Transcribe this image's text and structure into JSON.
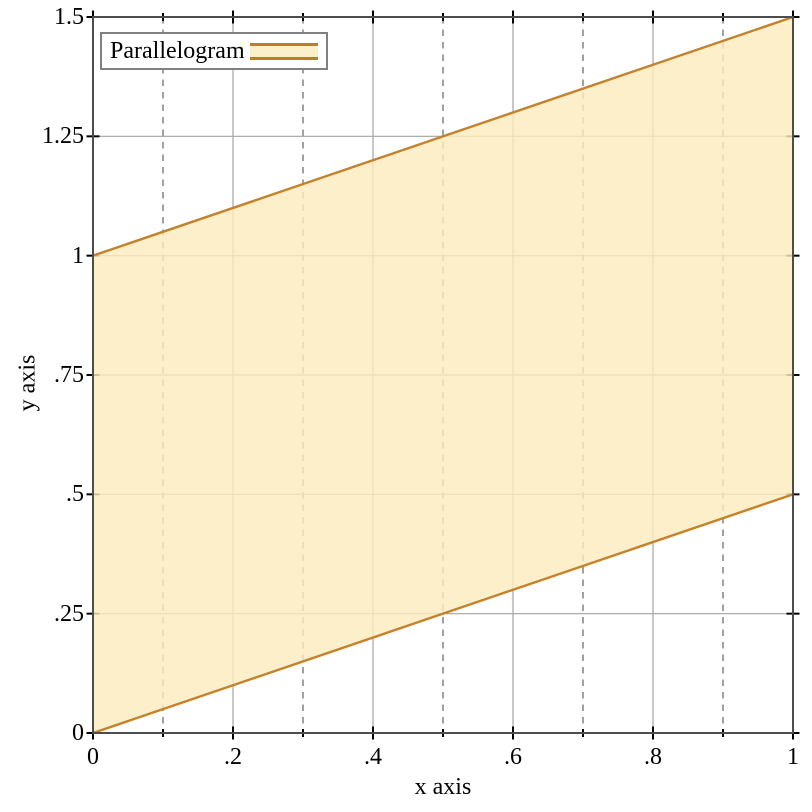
{
  "chart_data": {
    "type": "area",
    "xlabel": "x axis",
    "ylabel": "y axis",
    "xlim": [
      0,
      1
    ],
    "ylim": [
      0,
      1.5
    ],
    "x_ticks": {
      "major_values": [
        0,
        0.2,
        0.4,
        0.6,
        0.8,
        1
      ],
      "major_labels": [
        "0",
        ".2",
        ".4",
        ".6",
        ".8",
        "1"
      ],
      "minor_values": [
        0.1,
        0.3,
        0.5,
        0.7,
        0.9
      ]
    },
    "y_ticks": {
      "major_values": [
        0,
        0.25,
        0.5,
        0.75,
        1,
        1.25,
        1.5
      ],
      "major_labels": [
        "0",
        ".25",
        ".5",
        ".75",
        "1",
        "1.25",
        "1.5"
      ],
      "minor_values": []
    },
    "grid": {
      "vertical_major": "solid",
      "vertical_minor": "dashed",
      "horizontal_major": "solid",
      "horizontal_minor": "none",
      "dash_pattern": "6.5 6"
    },
    "legend": [
      {
        "label": "Parallelogram",
        "swatch": "filled-interval"
      }
    ],
    "legend_position": "top-left",
    "series": [
      {
        "name": "Parallelogram",
        "type": "lines-interval",
        "x": [
          0,
          1
        ],
        "y_lower": [
          0,
          0.5
        ],
        "y_upper": [
          1,
          1.5
        ],
        "vertices": [
          [
            0,
            0
          ],
          [
            1,
            0.5
          ],
          [
            1,
            1.5
          ],
          [
            0,
            1
          ]
        ]
      }
    ],
    "style": {
      "fill_color": "#FBECBD",
      "fill_opacity": 0.82,
      "line_color": "#C5822B",
      "line_width": 2.4,
      "grid_color_solid": "#A3A3A3",
      "grid_color_dashed": "#8A8A8A",
      "border_color": "#4D4D4D",
      "tick_color": "#000000",
      "text_color": "#000000",
      "legend_border_color": "#808080",
      "background": "#FFFFFF"
    }
  }
}
